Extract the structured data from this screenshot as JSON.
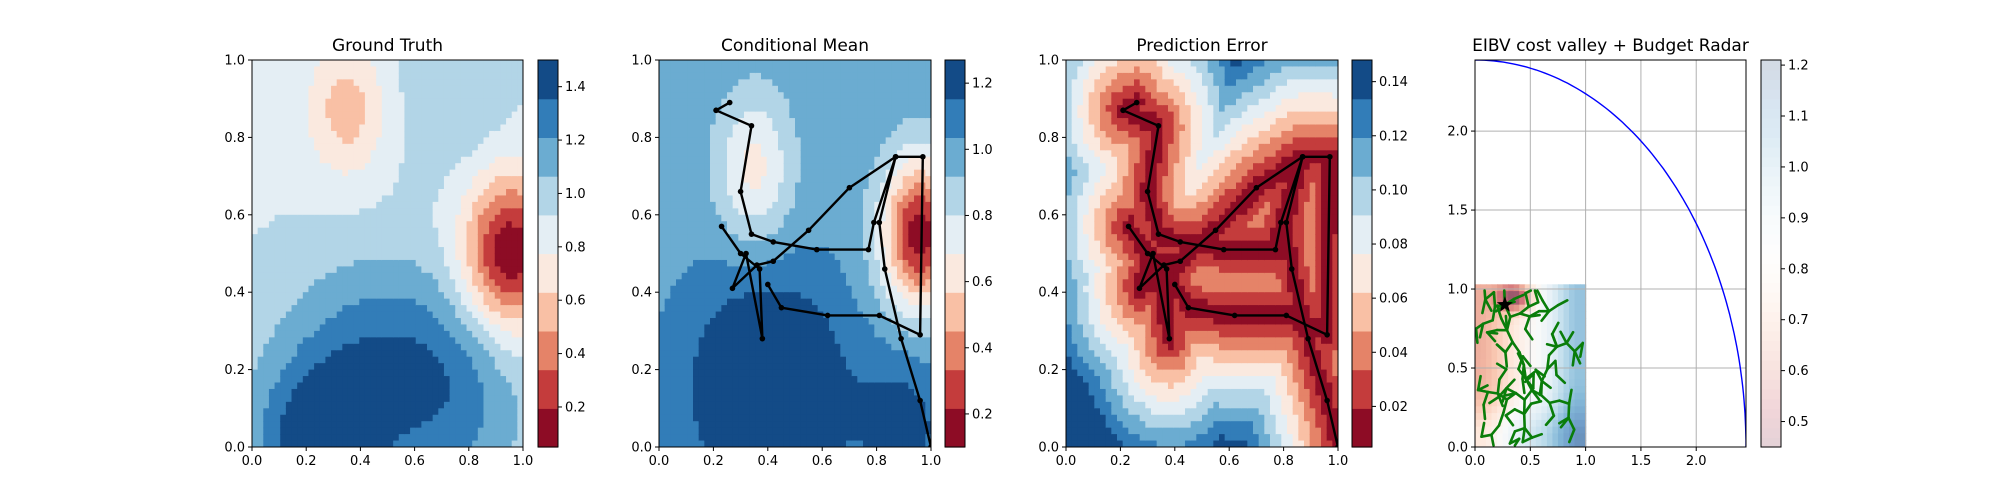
{
  "chart_data": [
    {
      "type": "heatmap",
      "title": "Ground Truth",
      "xlim": [
        0,
        1
      ],
      "ylim": [
        0,
        1
      ],
      "xticks": [
        "0.0",
        "0.2",
        "0.4",
        "0.6",
        "0.8",
        "1.0"
      ],
      "yticks": [
        "0.0",
        "0.2",
        "0.4",
        "0.6",
        "0.8",
        "1.0"
      ],
      "colormap": "RdBu",
      "colorbar": {
        "range": [
          0.05,
          1.5
        ],
        "ticks": [
          "0.2",
          "0.4",
          "0.6",
          "0.8",
          "1.0",
          "1.2",
          "1.4"
        ],
        "tick_values": [
          0.2,
          0.4,
          0.6,
          0.8,
          1.0,
          1.2,
          1.4
        ]
      },
      "field": {
        "base": 0.9,
        "bumps": [
          {
            "x": 0.95,
            "y": 0.5,
            "amp": -0.85,
            "sx": 0.12,
            "sy": 0.14
          },
          {
            "x": 0.35,
            "y": 0.87,
            "amp": -0.35,
            "sx": 0.1,
            "sy": 0.12
          },
          {
            "x": 0.25,
            "y": 0.0,
            "amp": 0.55,
            "sx": 0.18,
            "sy": 0.15
          },
          {
            "x": 0.45,
            "y": 0.25,
            "amp": 0.35,
            "sx": 0.25,
            "sy": 0.18
          },
          {
            "x": 0.75,
            "y": 0.1,
            "amp": 0.3,
            "sx": 0.2,
            "sy": 0.2
          },
          {
            "x": 0.75,
            "y": 0.9,
            "amp": 0.15,
            "sx": 0.15,
            "sy": 0.15
          }
        ]
      }
    },
    {
      "type": "heatmap",
      "title": "Conditional Mean",
      "xlim": [
        0,
        1
      ],
      "ylim": [
        0,
        1
      ],
      "xticks": [
        "0.0",
        "0.2",
        "0.4",
        "0.6",
        "0.8",
        "1.0"
      ],
      "yticks": [
        "0.0",
        "0.2",
        "0.4",
        "0.6",
        "0.8",
        "1.0"
      ],
      "colormap": "RdBu",
      "colorbar": {
        "range": [
          0.1,
          1.27
        ],
        "ticks": [
          "0.2",
          "0.4",
          "0.6",
          "0.8",
          "1.0",
          "1.2"
        ],
        "tick_values": [
          0.2,
          0.4,
          0.6,
          0.8,
          1.0,
          1.2
        ]
      },
      "field": {
        "base": 1.0,
        "bumps": [
          {
            "x": 0.96,
            "y": 0.55,
            "amp": -0.85,
            "sx": 0.1,
            "sy": 0.14
          },
          {
            "x": 0.35,
            "y": 0.72,
            "amp": -0.35,
            "sx": 0.1,
            "sy": 0.14
          },
          {
            "x": 0.4,
            "y": 0.15,
            "amp": 0.4,
            "sx": 0.2,
            "sy": 0.2
          },
          {
            "x": 0.9,
            "y": 0.05,
            "amp": 0.2,
            "sx": 0.12,
            "sy": 0.15
          }
        ]
      },
      "path": [
        [
          0.21,
          0.87
        ],
        [
          0.26,
          0.89
        ],
        [
          0.21,
          0.87
        ],
        [
          0.34,
          0.83
        ],
        [
          0.3,
          0.66
        ],
        [
          0.34,
          0.55
        ],
        [
          0.42,
          0.53
        ],
        [
          0.58,
          0.51
        ],
        [
          0.77,
          0.51
        ],
        [
          0.79,
          0.58
        ],
        [
          0.87,
          0.75
        ],
        [
          0.81,
          0.58
        ],
        [
          0.83,
          0.46
        ],
        [
          0.89,
          0.28
        ],
        [
          0.96,
          0.12
        ],
        [
          1.0,
          0.0
        ]
      ],
      "path2": [
        [
          0.23,
          0.57
        ],
        [
          0.3,
          0.5
        ],
        [
          0.37,
          0.46
        ],
        [
          0.38,
          0.28
        ],
        [
          0.32,
          0.5
        ],
        [
          0.27,
          0.41
        ],
        [
          0.36,
          0.47
        ],
        [
          0.42,
          0.48
        ],
        [
          0.55,
          0.56
        ],
        [
          0.7,
          0.67
        ],
        [
          0.87,
          0.75
        ],
        [
          0.97,
          0.75
        ],
        [
          0.96,
          0.29
        ],
        [
          0.81,
          0.34
        ],
        [
          0.62,
          0.34
        ],
        [
          0.45,
          0.36
        ],
        [
          0.4,
          0.42
        ]
      ]
    },
    {
      "type": "heatmap",
      "title": "Prediction Error",
      "xlim": [
        0,
        1
      ],
      "ylim": [
        0,
        1
      ],
      "xticks": [
        "0.0",
        "0.2",
        "0.4",
        "0.6",
        "0.8",
        "1.0"
      ],
      "yticks": [
        "0.0",
        "0.2",
        "0.4",
        "0.6",
        "0.8",
        "1.0"
      ],
      "colormap": "RdBu",
      "colorbar": {
        "range": [
          0.005,
          0.148
        ],
        "ticks": [
          "0.02",
          "0.04",
          "0.06",
          "0.08",
          "0.10",
          "0.12",
          "0.14"
        ],
        "tick_values": [
          0.02,
          0.04,
          0.06,
          0.08,
          0.1,
          0.12,
          0.14
        ]
      },
      "path": [
        [
          0.21,
          0.87
        ],
        [
          0.26,
          0.89
        ],
        [
          0.21,
          0.87
        ],
        [
          0.34,
          0.83
        ],
        [
          0.3,
          0.66
        ],
        [
          0.34,
          0.55
        ],
        [
          0.42,
          0.53
        ],
        [
          0.58,
          0.51
        ],
        [
          0.77,
          0.51
        ],
        [
          0.79,
          0.58
        ],
        [
          0.87,
          0.75
        ],
        [
          0.81,
          0.58
        ],
        [
          0.83,
          0.46
        ],
        [
          0.89,
          0.28
        ],
        [
          0.96,
          0.12
        ],
        [
          1.0,
          0.0
        ]
      ],
      "path2": [
        [
          0.23,
          0.57
        ],
        [
          0.3,
          0.5
        ],
        [
          0.37,
          0.46
        ],
        [
          0.38,
          0.28
        ],
        [
          0.32,
          0.5
        ],
        [
          0.27,
          0.41
        ],
        [
          0.36,
          0.47
        ],
        [
          0.42,
          0.48
        ],
        [
          0.55,
          0.56
        ],
        [
          0.7,
          0.67
        ],
        [
          0.87,
          0.75
        ],
        [
          0.97,
          0.75
        ],
        [
          0.96,
          0.29
        ],
        [
          0.81,
          0.34
        ],
        [
          0.62,
          0.34
        ],
        [
          0.45,
          0.36
        ],
        [
          0.4,
          0.42
        ]
      ]
    },
    {
      "type": "scatter",
      "title": "EIBV cost valley + Budget Radar",
      "xlim": [
        0,
        2.45
      ],
      "ylim": [
        0,
        2.45
      ],
      "xticks": [
        "0.0",
        "0.5",
        "1.0",
        "1.5",
        "2.0"
      ],
      "xtick_values": [
        0,
        0.5,
        1.0,
        1.5,
        2.0
      ],
      "yticks": [
        "0.0",
        "0.5",
        "1.0",
        "1.5",
        "2.0"
      ],
      "ytick_values": [
        0,
        0.5,
        1.0,
        1.5,
        2.0
      ],
      "grid": true,
      "colorbar": {
        "range": [
          0.45,
          1.21
        ],
        "ticks": [
          "0.5",
          "0.6",
          "0.7",
          "0.8",
          "0.9",
          "1.0",
          "1.1",
          "1.2"
        ],
        "tick_values": [
          0.5,
          0.6,
          0.7,
          0.8,
          0.9,
          1.0,
          1.1,
          1.2
        ]
      },
      "radar": {
        "center": [
          0,
          0
        ],
        "radius": 2.45,
        "color": "#0000ff"
      },
      "cost_field_extent": [
        0,
        1,
        0,
        1.03
      ],
      "current_location": [
        0.27,
        0.9
      ],
      "tree_color": "#0a7d0a"
    }
  ]
}
